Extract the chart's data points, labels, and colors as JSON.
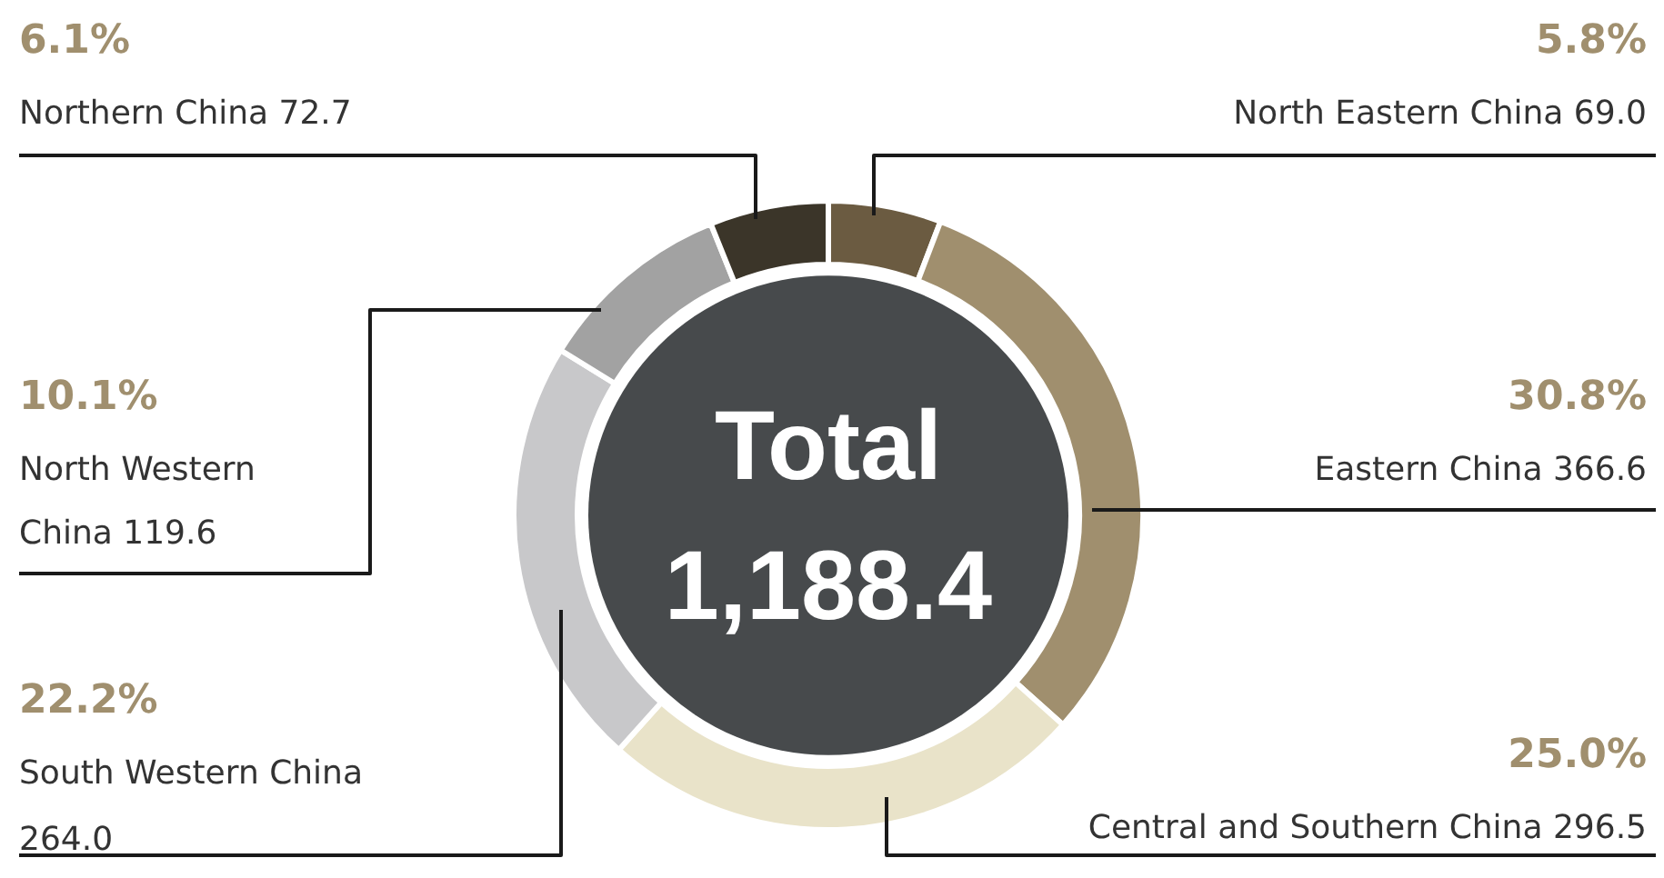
{
  "chart_data": {
    "type": "donut",
    "categories": [
      "North Eastern China 69.0",
      "Eastern China 366.6",
      "Central and Southern China 296.5",
      "South Western China 264.0",
      "North Western China 119.6",
      "Northern China 72.7"
    ],
    "values": [
      5.8,
      30.8,
      25.0,
      22.2,
      10.1,
      6.1
    ],
    "colors": [
      "#6b5b41",
      "#a08f6e",
      "#e9e3c9",
      "#c8c8ca",
      "#a2a2a2",
      "#3b3529"
    ],
    "value_labels": [
      "5.8%",
      "30.8%",
      "25.0%",
      "22.2%",
      "10.1%",
      "6.1%"
    ],
    "annotations": [
      "Total",
      "1,188.4"
    ]
  }
}
